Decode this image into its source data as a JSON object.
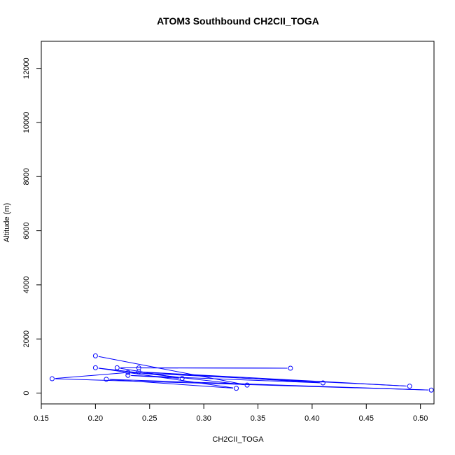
{
  "chart_data": {
    "type": "line",
    "title": "ATOM3 Southbound CH2CII_TOGA",
    "xlabel": "CH2CII_TOGA",
    "ylabel": "Altitude (m)",
    "xlim": [
      0.15,
      0.5125
    ],
    "ylim": [
      -400,
      13000
    ],
    "x_ticks": [
      0.15,
      0.2,
      0.25,
      0.3,
      0.35,
      0.4,
      0.45,
      0.5
    ],
    "x_tick_labels": [
      "0.15",
      "0.20",
      "0.25",
      "0.30",
      "0.35",
      "0.40",
      "0.45",
      "0.50"
    ],
    "y_ticks": [
      0,
      2000,
      4000,
      6000,
      8000,
      10000,
      12000
    ],
    "y_tick_labels": [
      "0",
      "2000",
      "4000",
      "6000",
      "8000",
      "10000",
      "12000"
    ],
    "grid": false,
    "series": [
      {
        "color": "#0000ff",
        "marker": "open-circle",
        "points": [
          {
            "x": 0.2,
            "y": 1375
          },
          {
            "x": 0.34,
            "y": 295
          },
          {
            "x": 0.2,
            "y": 935
          },
          {
            "x": 0.33,
            "y": 175
          },
          {
            "x": 0.21,
            "y": 510
          },
          {
            "x": 0.51,
            "y": 110
          },
          {
            "x": 0.16,
            "y": 530
          },
          {
            "x": 0.23,
            "y": 760
          },
          {
            "x": 0.49,
            "y": 255
          },
          {
            "x": 0.24,
            "y": 785
          },
          {
            "x": 0.41,
            "y": 375
          },
          {
            "x": 0.23,
            "y": 655
          },
          {
            "x": 0.28,
            "y": 540
          },
          {
            "x": 0.22,
            "y": 935
          },
          {
            "x": 0.38,
            "y": 920
          },
          {
            "x": 0.24,
            "y": 930
          }
        ]
      }
    ]
  }
}
